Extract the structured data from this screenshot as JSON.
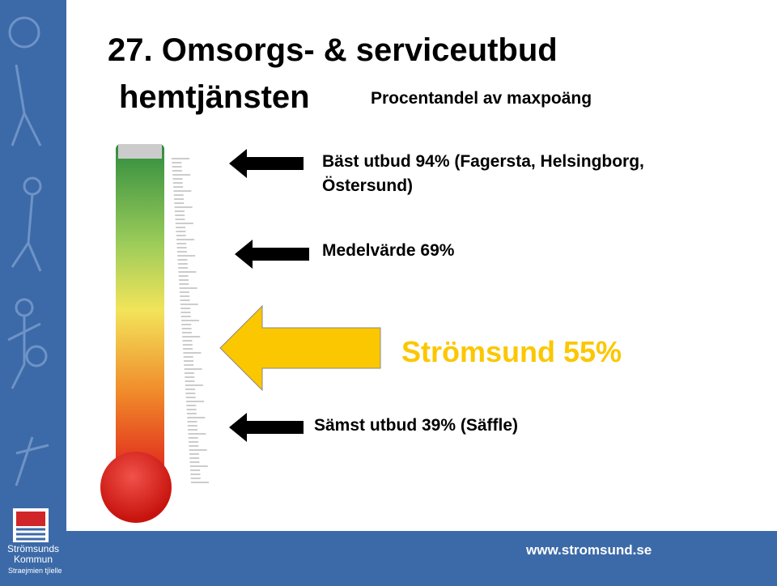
{
  "header": {
    "title": "27. Omsorgs- & serviceutbud",
    "subtitle": "hemtjänsten",
    "note": "Procentandel av maxpoäng"
  },
  "labels": {
    "best": [
      "Bäst utbud 94% (Fagersta, Helsingborg,",
      "Östersund)"
    ],
    "average": "Medelvärde 69%",
    "own": "Strömsund 55%",
    "worst": "Sämst utbud 39% (Säffle)"
  },
  "footer": {
    "url": "www.stromsund.se",
    "logo_name": [
      "Strömsunds",
      "Kommun"
    ],
    "logo_sub": "Straejmien tjïelle"
  }
}
